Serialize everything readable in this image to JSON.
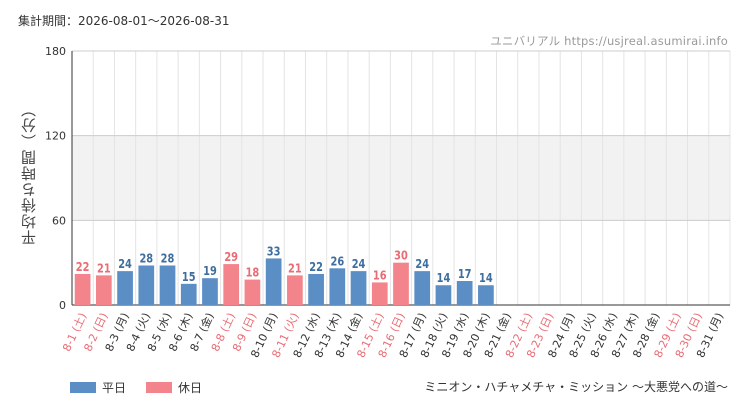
{
  "header": {
    "period": "集計期間：2026-08-01～2026-08-31",
    "source": "ユニバリアル https://usjreal.asumirai.info"
  },
  "legend": {
    "weekday": "平日",
    "holiday": "休日"
  },
  "footer": {
    "attraction": "ミニオン・ハチャメチャ・ミッション ～大悪党への道～"
  },
  "colors": {
    "weekday": "#5b8ec5",
    "holiday": "#f4848c",
    "weekday_label": "#3f6e9e",
    "holiday_label": "#e86c75",
    "band": "#f2f2f2",
    "grid": "#e4e4e4",
    "axis": "#333333"
  },
  "chart_data": {
    "type": "bar",
    "ylabel": "平均待ち時間（分）",
    "ylim": [
      0,
      180
    ],
    "yticks": [
      0,
      60,
      120,
      180
    ],
    "shaded_band": [
      60,
      120
    ],
    "categories": [
      "8-1 (土)",
      "8-2 (日)",
      "8-3 (月)",
      "8-4 (火)",
      "8-5 (水)",
      "8-6 (木)",
      "8-7 (金)",
      "8-8 (土)",
      "8-9 (日)",
      "8-10 (月)",
      "8-11 (火)",
      "8-12 (水)",
      "8-13 (木)",
      "8-14 (金)",
      "8-15 (土)",
      "8-16 (日)",
      "8-17 (月)",
      "8-18 (火)",
      "8-19 (水)",
      "8-20 (木)",
      "8-21 (金)",
      "8-22 (土)",
      "8-23 (日)",
      "8-24 (月)",
      "8-25 (火)",
      "8-26 (水)",
      "8-27 (木)",
      "8-28 (金)",
      "8-29 (土)",
      "8-30 (日)",
      "8-31 (月)"
    ],
    "values": [
      22,
      21,
      24,
      28,
      28,
      15,
      19,
      29,
      18,
      33,
      21,
      22,
      26,
      24,
      16,
      30,
      24,
      14,
      17,
      14,
      null,
      null,
      null,
      null,
      null,
      null,
      null,
      null,
      null,
      null,
      null
    ],
    "day_type": [
      "holiday",
      "holiday",
      "weekday",
      "weekday",
      "weekday",
      "weekday",
      "weekday",
      "holiday",
      "holiday",
      "weekday",
      "holiday",
      "weekday",
      "weekday",
      "weekday",
      "holiday",
      "holiday",
      "weekday",
      "weekday",
      "weekday",
      "weekday",
      "weekday",
      "holiday",
      "holiday",
      "weekday",
      "weekday",
      "weekday",
      "weekday",
      "weekday",
      "holiday",
      "holiday",
      "weekday"
    ],
    "series": [
      {
        "name": "平日",
        "day_type": "weekday"
      },
      {
        "name": "休日",
        "day_type": "holiday"
      }
    ],
    "grid": true,
    "legend_position": "bottom-left"
  }
}
